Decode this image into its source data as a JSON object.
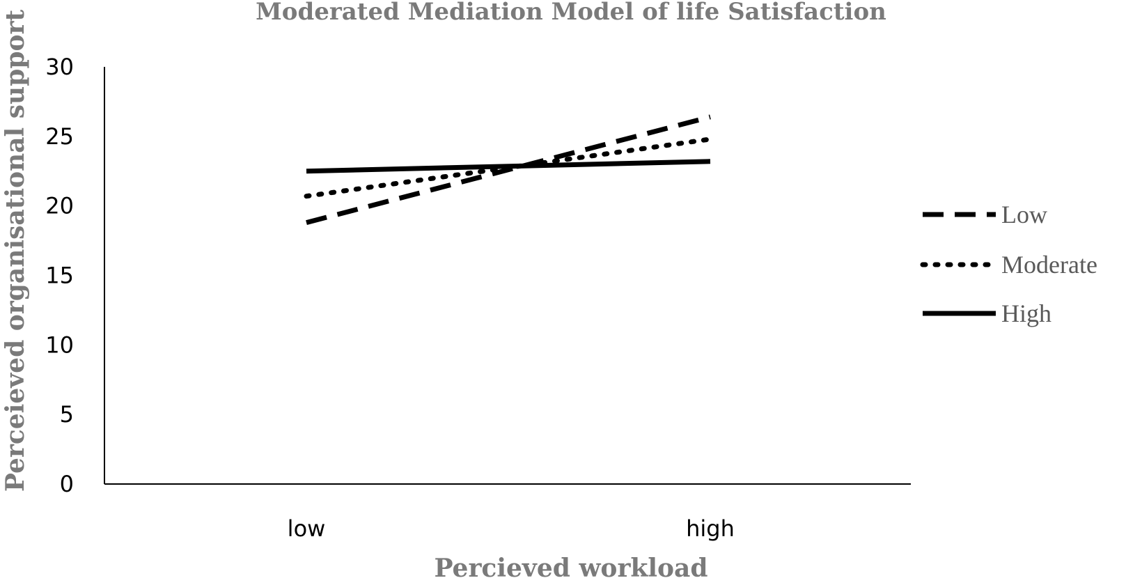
{
  "chart_data": {
    "type": "line",
    "title": "Moderated Mediation Model of life Satisfaction",
    "xlabel": "Percieved workload",
    "ylabel": "Perceieved organisational support",
    "categories": [
      "low",
      "high"
    ],
    "ylim": [
      0,
      30
    ],
    "yticks": [
      "0",
      "5",
      "10",
      "15",
      "20",
      "25",
      "30"
    ],
    "grid": false,
    "legend_position": "right",
    "series": [
      {
        "name": "Low",
        "style": "dashed",
        "color": "#000000",
        "values": [
          18.8,
          26.4
        ]
      },
      {
        "name": "Moderate",
        "style": "dotted",
        "color": "#000000",
        "values": [
          20.7,
          24.8
        ]
      },
      {
        "name": "High",
        "style": "solid",
        "color": "#000000",
        "values": [
          22.5,
          23.2
        ]
      }
    ]
  }
}
